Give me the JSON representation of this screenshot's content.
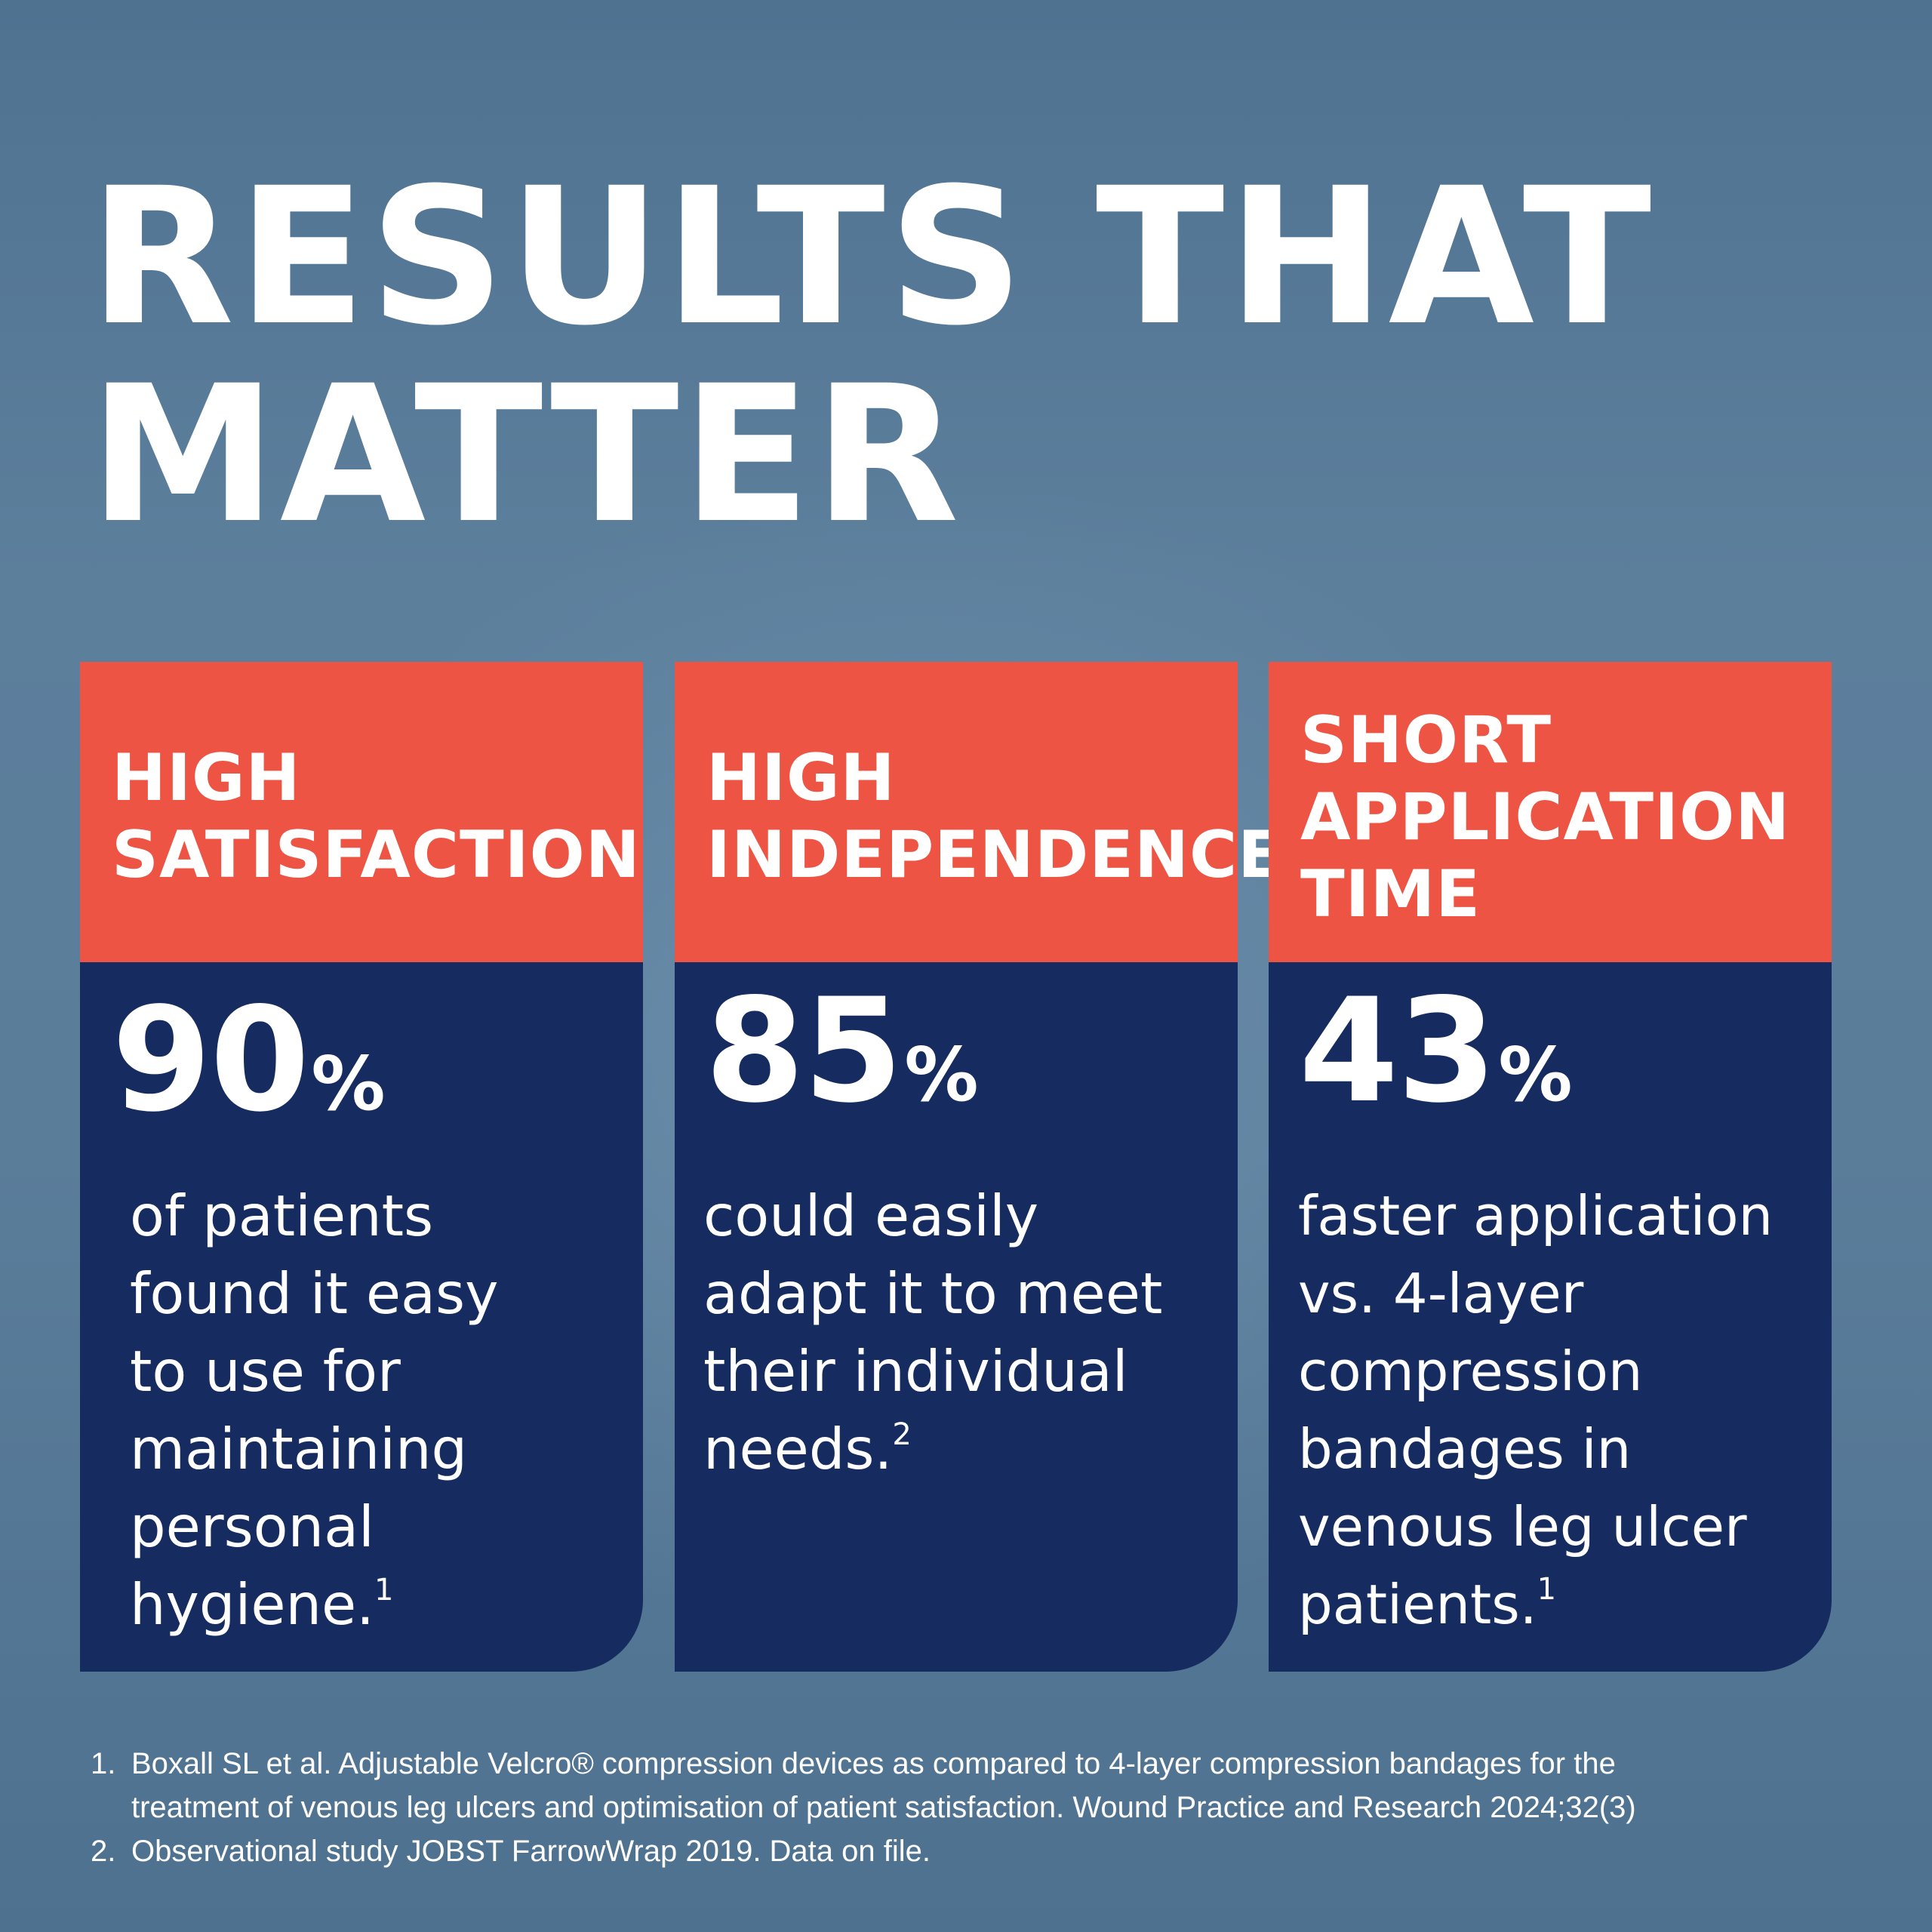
{
  "headline": {
    "line1": "RESULTS THAT",
    "line2": "MATTER"
  },
  "cards": [
    {
      "title_lines": [
        "HIGH",
        "SATISFACTION"
      ],
      "stat_value": "90",
      "stat_unit": "%",
      "description_lines": [
        "of patients",
        "found it easy",
        "to use for",
        "maintaining",
        "personal",
        "hygiene."
      ],
      "footnote_ref": "1"
    },
    {
      "title_lines": [
        "HIGH",
        "INDEPENDENCE"
      ],
      "stat_value": "85",
      "stat_unit": "%",
      "description_lines": [
        "could easily",
        "adapt it to meet",
        "their individual",
        "needs."
      ],
      "footnote_ref": "2"
    },
    {
      "title_lines": [
        "SHORT",
        "APPLICATION",
        "TIME"
      ],
      "stat_value": "43",
      "stat_unit": "%",
      "description_lines": [
        "faster application",
        "vs. 4-layer",
        "compression",
        "bandages in",
        "venous leg ulcer",
        "patients."
      ],
      "footnote_ref": "1"
    }
  ],
  "footnotes": [
    {
      "number": "1.",
      "lines": [
        "Boxall SL et al. Adjustable Velcro® compression devices as compared to 4-layer compression bandages for the",
        "treatment of venous leg ulcers and optimisation of patient satisfaction. Wound Practice and Research 2024;32(3)"
      ]
    },
    {
      "number": "2.",
      "lines": [
        "Observational study JOBST FarrowWrap 2019. Data on file."
      ]
    }
  ],
  "colors": {
    "background": "#5a7d9a",
    "header_red": "#ed5443",
    "body_navy": "#162c60",
    "text": "#ffffff"
  }
}
